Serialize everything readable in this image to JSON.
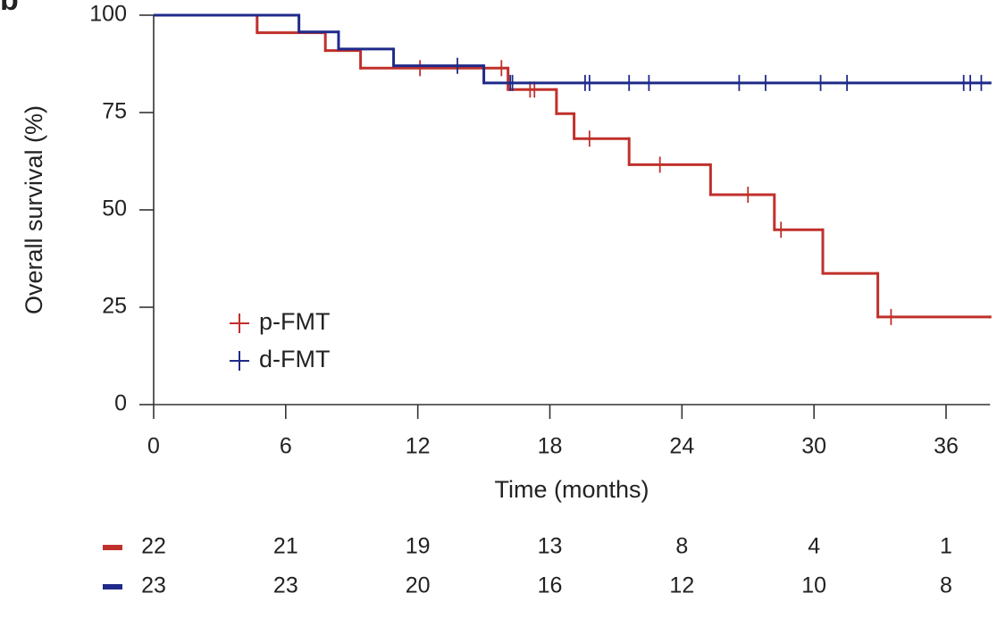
{
  "chart_data": {
    "type": "step",
    "panel_label": "b",
    "x_label": "Time (months)",
    "y_label": "Overall survival (%)",
    "xlim": [
      0,
      38
    ],
    "ylim": [
      0,
      100
    ],
    "xticks": [
      0,
      6,
      12,
      18,
      24,
      30,
      36
    ],
    "yticks": [
      0,
      25,
      50,
      75,
      100
    ],
    "legend": "lower left",
    "series": [
      {
        "name": "p-FMT",
        "color": "#c0302b",
        "x": [
          0,
          4.7,
          7.8,
          9.4,
          16.1,
          18.3,
          19.1,
          21.6,
          25.3,
          28.2,
          30.4,
          32.9,
          38
        ],
        "values": [
          100,
          95.5,
          90.9,
          86.4,
          80.9,
          74.7,
          68.3,
          61.6,
          53.9,
          44.9,
          33.7,
          22.5,
          22.5
        ],
        "censor_x": [
          12.1,
          15.8,
          17.1,
          17.3,
          19.8,
          23.0,
          27.0,
          28.5,
          33.5
        ],
        "censor_y": [
          86.4,
          86.4,
          80.9,
          80.9,
          68.3,
          61.6,
          53.9,
          44.9,
          22.5
        ],
        "at_risk": [
          22,
          21,
          19,
          13,
          8,
          4,
          1
        ]
      },
      {
        "name": "d-FMT",
        "color": "#1f2a8a",
        "x": [
          0,
          6.6,
          8.4,
          10.9,
          15.0,
          38
        ],
        "values": [
          100,
          95.7,
          91.3,
          87.0,
          82.6,
          82.6
        ],
        "censor_x": [
          13.8,
          16.2,
          16.3,
          19.6,
          19.8,
          21.6,
          22.5,
          26.6,
          27.8,
          30.3,
          31.5,
          36.8,
          37.1,
          37.6
        ],
        "censor_y": [
          87.0,
          82.6,
          82.6,
          82.6,
          82.6,
          82.6,
          82.6,
          82.6,
          82.6,
          82.6,
          82.6,
          82.6,
          82.6,
          82.6
        ],
        "at_risk": [
          23,
          23,
          20,
          16,
          12,
          10,
          8
        ]
      }
    ]
  }
}
